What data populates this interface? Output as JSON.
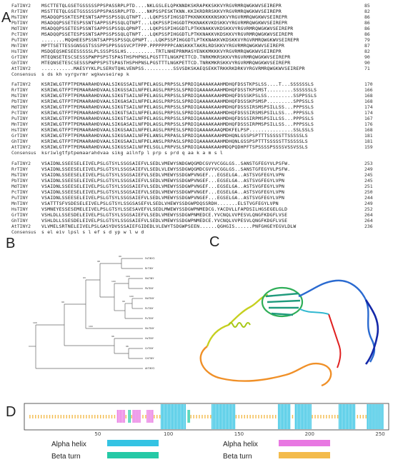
{
  "panels": {
    "A": "A",
    "B": "B",
    "C": "C",
    "D": "D"
  },
  "alignment": {
    "blocks": [
      {
        "rows": [
          {
            "name": "FaTINY2",
            "seq": "MSCTTETQLGSETGSSSSSPPSPASSRPLPTD....NKLGSLELQPKNNDKSKRAPKKSKKVYRGVRMRQWGKWVSEIREPR",
            "end": "85"
          },
          {
            "name": "RrTINY",
            "seq": "MSSTTETQLGSETGSSSSSPPSPASSRPLPTD....NKPSSPESKTKNN.KKIKRDRRSKKVYRGVRMRQWGKWVSEIREPR",
            "end": "82"
          },
          {
            "name": "MsTINY",
            "seq": "MSADQQPSSKTESPESNTSAPPSSPSSQLQTNPT...LQKPSSFIHGSDTPKKNKKKKKNSKKVYRGVRMRQWGKWVSEIREPR",
            "end": "86"
          },
          {
            "name": "PbTINY",
            "seq": "MSADQQPSSETESPSSNTSAPPSSPSSQLQTNPT...LQKPSSPIHGGDTPKKNAKKVKDSKKVYRGVRMRQWGKWVSEIREPR",
            "end": "86"
          },
          {
            "name": "MdTINY",
            "seq": "MSADQQPSSETESPSSNTSAPPSSPSSQLQPNPT...LQKPSSPIHGGDTLPTKKNAKKVKDSKKVYRGVRMRQWGKWVSEIREPR",
            "end": "86"
          },
          {
            "name": "PcTINY",
            "seq": "MSADQQPSSETESPSSNTSAPPSSPSSQLQTNPT...LQKPSSPIHGGDTLPTKKNAKKVKDSKKVYRGVRMRQWGKWVSEIREPR",
            "end": "86"
          },
          {
            "name": "PuTINY",
            "seq": "........MQQHEESPSSNTSAPPSSPSSQLQPNPT...LQKPSSPIHGGDTLPTKKNAKKVKDSKKVYRGVRMRQWGKWVSEIREPR",
            "end": "79"
          },
          {
            "name": "MnTINY",
            "seq": "MPTTSETTESSGNSGSTSSSPPSPPSSGSVCPTPPP.PPPPPPPPCANSKKKTAKRLRDSKKVYRGVRMRQWGKWVSEIREPR",
            "end": "87"
          },
          {
            "name": "HsTINY",
            "seq": "MSDQEQSHESEESSSSSLPLSSSPSSLHS..........TRTLNHEPRNMASYENKKMKKKVYRGVRMRQWGKWVSEIREPR",
            "end": "82"
          },
          {
            "name": "GrTINY",
            "seq": "MTEQNSETESCSESSSPWPPSPSTSPASTHSPHPNSLPGSTTTLNGKPETTCD.TNRKMKRSKKVYRGVRMRQWGKWVSEIREPR",
            "end": "90"
          },
          {
            "name": "GhTINY",
            "seq": "MTEQNSETESCSESSSPWPPSPSTSPASTHSPHPNSLPGSTTTLNGKPETTCD.TNRKMKRSKKVYRGVRMRQWGKWVSEIREPR",
            "end": "90"
          },
          {
            "name": "AtTINY2",
            "seq": "...........MAESYYKLPLSERVTQHLVENPSS..........SSVSDKSKAEQSEKKTRKKRKDRKVYRGVRMRQWGKWVSEIREPR",
            "end": "71"
          },
          {
            "name": "Consensus",
            "seq": "                       s                                              ds kh vyrgvrmr wgkwvseirep k",
            "end": ""
          }
        ]
      },
      {
        "rows": [
          {
            "name": "FaTINY2",
            "seq": "KSRIWLGTFPTPEMAARAHDVAALSIKGSSAILNFPELAGSLPRPSSLSPRDIQAAAAKAAHMDHQFDSSTKPSLSS....T...SSSSSSLS",
            "end": "170"
          },
          {
            "name": "RrTINY",
            "seq": "KSRIWLGTFPTPEMAARAHDVAALSIKGSSAILNFPELAGSLPRPSSLSPRDIQAAAAKAAHMDHQFDSSTKPSMST.........SSSSSSLS",
            "end": "166"
          },
          {
            "name": "MsTINY",
            "seq": "KSRIWLGTFPTPEMAARAHDVAALSIKGTSAILNFPELAGSLPRPSSLSPRDIQAAAAKAAHMDHQFDSSSKPSLSS.........SSPPSSLS",
            "end": "168"
          },
          {
            "name": "PbTINY",
            "seq": "KSRIWLGTFPTPEMAARAHDVAALSIKGASAILNFPELAGSLPRPSSLSPRDIQAAAAKAAHMDHQFDSSSKPSMSP.........SPPSSLS",
            "end": "168"
          },
          {
            "name": "MdTINY",
            "seq": "KSRIWLGTFPTPEMAARAHDVAALSIKGTSAILNFPELAGSLPRPSSLSPRDIQAAAAKAAHMDHQFDSSSIRSMSPSILLSS...PPPSSLS",
            "end": "174"
          },
          {
            "name": "PcTINY",
            "seq": "KSRIWLGTFPTPEMAARAHDVAALSIKGTSAILNFPELAGSLPRPSSLSPRDIQAAAAKAAHMDHQFDSSSIRSMSPSILLSS...PPPSSLS",
            "end": "174"
          },
          {
            "name": "PuTINY",
            "seq": "KSRIWLGTFPTPEMAARAHDVAALSIKGTSAILNFPELAGSLPRPSSLSPRDIQAAAAKAAHMDHQFDSSSIRPMSPSILLSS...PPPSSLS",
            "end": "167"
          },
          {
            "name": "MnTINY",
            "seq": "KSRIWLGTFPTPEMAARAHDVAALSIKGASAILNFPDLAGSLPRPSSLSPRDIQAAAAKAAHMDHQFDSSSIRPMSPSILLSS...PPPSSLS",
            "end": "176"
          },
          {
            "name": "HsTINY",
            "seq": "KSRIWLGTFPTPEMAARAHDVAALSIKGSAAILNFPELAGSLPRPESLSPRDIQAAAAKAAQMDKFELPSP...............SSLSSLS",
            "end": "168"
          },
          {
            "name": "GrTINY",
            "seq": "KSRIWLGTFPTPEMAARAHDVAALSIKGSAAILNFPELANSLPRPASLSPRDIQAAAAKAAHMDHQNLGSSPSPTTTSSSSSTTSSSSSLS",
            "end": "181"
          },
          {
            "name": "GhTINY",
            "seq": "KSRIWLGTFPTPEMAARAHDVAALSIKGSAAILNFPELANSLPRPASLSPRDIQAAAAKAAHMDHQNLGSSPSPTTTSSSSSTTSSSSSLS",
            "end": "181"
          },
          {
            "name": "AtTINY2",
            "seq": "KSRIWLGTFPTPEMAARAHDVAALSIKGSSAILNFPELSGLLPRPVSLSPRDIQAAAAKAAHMDQPQDHPFTSPSSSSPSSSSVSSVSSLS",
            "end": "159"
          },
          {
            "name": "Consensus",
            "seq": "ksriwlgtfptpemaarahdvaa sikg  ailnfp l     prp s   prd q aa k a m                     s  l",
            "end": ""
          }
        ]
      },
      {
        "rows": [
          {
            "name": "FaTINY2",
            "seq": "VSAIDNLSSEESELEIVELPSLGTSYLSSGSAIEFVLSEDLVMEWYSNDGWQGMDCGVYVCGGLGS..SANSTGFEGYVLPSFW.",
            "end": "253"
          },
          {
            "name": "RrTINY",
            "seq": "VSAIDNLSSEESELEIVELPSLGTSYLSSGSAIEFVLSEDLVLEWYSSDGWQGMDCGVYVCGGLGS..SANSTGFEGYVLPSFW.",
            "end": "249"
          },
          {
            "name": "MsTINY",
            "seq": "VSAIDNLSSEESELEIVELPSLGTSYLSSGSAIEFVLSEDLVMEWYSSDGWPVNGEF...EGSELGA..ASTSVGFEGYLVPN",
            "end": "245"
          },
          {
            "name": "PbTINY",
            "seq": "VSAIDNLSSEESELEIVELPSLGTSYLSSGSAIEFVLSEDLVMEWYSSDGWPVNGEF...EGSELGA..ASTSVGFEGYLVPN",
            "end": "245"
          },
          {
            "name": "MdTINY",
            "seq": "VSAIDNLSSEESELEIVELPSLGTSYLSSGSAIEFVLSEDLVMEWYSSDGWPVNGEF...EGSELGA..ASTSVGFEGYLVPN",
            "end": "251"
          },
          {
            "name": "PcTINY",
            "seq": "VSAIDNLSSEESELEIVELPSLGTSYLSSGSAIEFVLSEDLVMEWYSSDGWPVNGEF...EGSELGA..ASTSVGFEGYLVPN",
            "end": "250"
          },
          {
            "name": "PuTINY",
            "seq": "VSAIDNLSSEESELEIVELPSLGTSYLSSGSAIEFVLSEDLVMEWYSSDGWPVNGEF...EGSELGA..ASTSVGFEGYLVPN",
            "end": "244"
          },
          {
            "name": "MnTINY",
            "seq": "VSATTTSFVSDESELEIVELPSLGTSYLSSGSASEFVLSEDLVHEWYSSDGWPDQSSRDH.......ELSTVGFEGYLVPN",
            "end": "249"
          },
          {
            "name": "HsTINY",
            "seq": "VSMNEYESSESEMELEIVELPSLGTSYLSSESAVEFVLSEDLMWEWYSSDGWPNMEDCG.YACDVLLFAPDSILHGSEGELGLD",
            "end": "252"
          },
          {
            "name": "GrTINY",
            "seq": "VSHLDLLSSESDELEIVELPSLGTSYLSSGSAIEFVLSEDLVMEWYSSDGWPNMEDCE.YVCNQLVVPESVLQNGFKDGFLVSE",
            "end": "264"
          },
          {
            "name": "GhTINY",
            "seq": "VSHLDLLSSESDELEIVELPSLGTSYLSSGSAIEFVLSEDLVMEWYSSDGWPNMEDCE.YVCNQLVVPESVLQNGFKDGFLVSE",
            "end": "264"
          },
          {
            "name": "AtTINY2",
            "seq": "VLVMELSRTNELEIVELPSLGASYDVSSSAIEFGIDEDLVLEWYTSDGWPSEEN......QGHGIS......PNFGHGEYEGVLDLW",
            "end": "236"
          },
          {
            "name": "Consensus",
            "seq": "    s el eiv lpsl         s  l  ef    s d   yp   w                            l  w d",
            "end": ""
          }
        ]
      }
    ]
  },
  "tree": {
    "taxa": [
      "FaTINY2",
      "RrTINY",
      "MsTINY",
      "PbTINY",
      "MdTINY",
      "PcTINY",
      "PuTINY",
      "MnTINY",
      "HsTINY",
      "GrTINY",
      "GhTINY",
      "AtTINY2"
    ],
    "bootstrap": [
      "99",
      "98",
      "100",
      "100",
      "99",
      "100",
      "93",
      "96",
      "96",
      "99",
      "100",
      "100"
    ]
  },
  "domain_track": {
    "axis_ticks": [
      "50",
      "100",
      "150",
      "200",
      "250"
    ],
    "legend": [
      {
        "label": "Alpha helix",
        "color": "#34c3e3"
      },
      {
        "label": "Beta turn",
        "color": "#25c9a6"
      },
      {
        "label": "Alpha helix",
        "color": "#e878e2"
      },
      {
        "label": "Beta turn",
        "color": "#f3bb4c"
      }
    ]
  }
}
